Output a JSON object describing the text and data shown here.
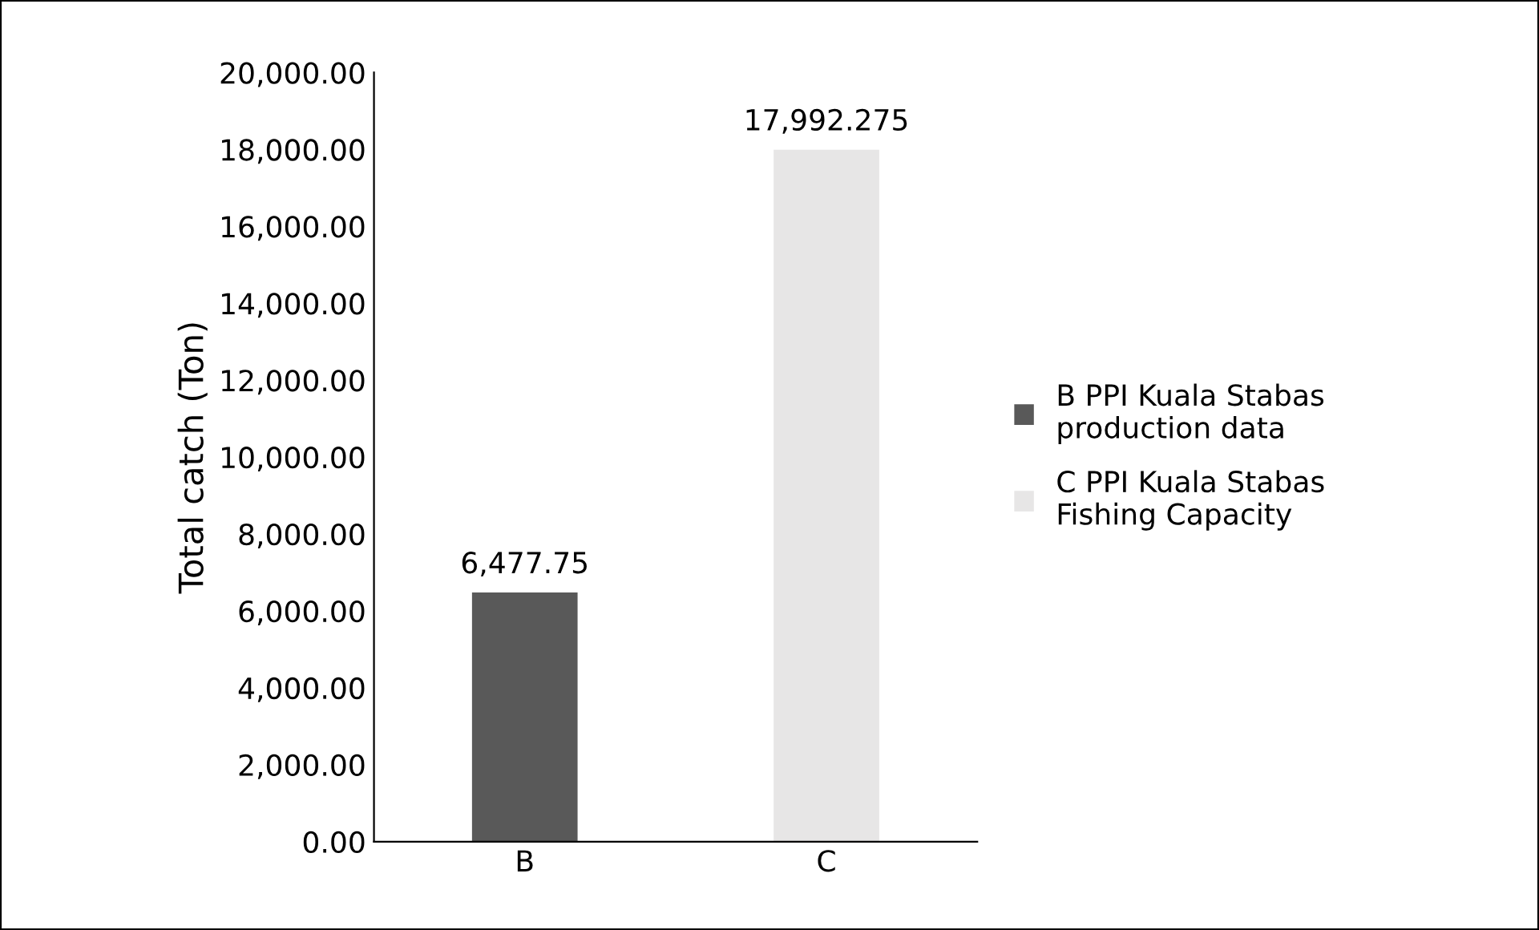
{
  "chart_data": {
    "type": "bar",
    "ylabel": "Total catch (Ton)",
    "categories": [
      "B",
      "C"
    ],
    "series": [
      {
        "name": "B PPI Kuala Stabas\nproduction data",
        "color": "#595959",
        "values": [
          6477.75,
          null
        ],
        "value_labels": [
          "6,477.75",
          null
        ]
      },
      {
        "name": "C PPI Kuala Stabas\nFishing Capacity",
        "color": "#e7e6e6",
        "values": [
          null,
          17992.275
        ],
        "value_labels": [
          null,
          "17,992.275"
        ]
      }
    ],
    "ylim": [
      0,
      20000
    ],
    "yticks": [
      {
        "value": 0,
        "label": "0.00"
      },
      {
        "value": 2000,
        "label": "2,000.00"
      },
      {
        "value": 4000,
        "label": "4,000.00"
      },
      {
        "value": 6000,
        "label": "6,000.00"
      },
      {
        "value": 8000,
        "label": "8,000.00"
      },
      {
        "value": 10000,
        "label": "10,000.00"
      },
      {
        "value": 12000,
        "label": "12,000.00"
      },
      {
        "value": 14000,
        "label": "14,000.00"
      },
      {
        "value": 16000,
        "label": "16,000.00"
      },
      {
        "value": 18000,
        "label": "18,000.00"
      },
      {
        "value": 20000,
        "label": "20,000.00"
      }
    ],
    "grid": false,
    "legend": "right"
  }
}
